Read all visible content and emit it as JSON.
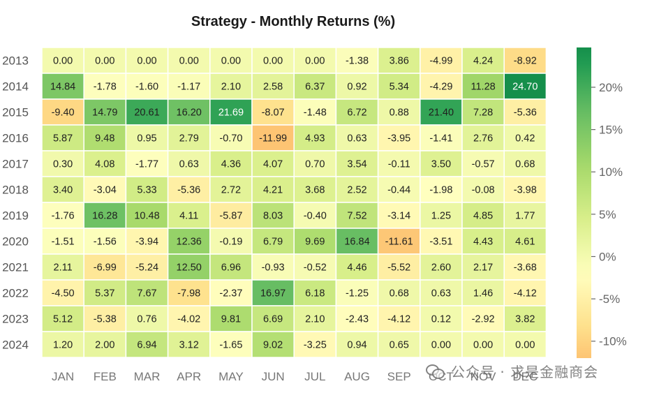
{
  "chart_data": {
    "type": "heatmap",
    "title": "Strategy - Monthly Returns (%)",
    "columns": [
      "JAN",
      "FEB",
      "MAR",
      "APR",
      "MAY",
      "JUN",
      "JUL",
      "AUG",
      "SEP",
      "OCT",
      "NOV",
      "DEC"
    ],
    "rows": [
      "2013",
      "2014",
      "2015",
      "2016",
      "2017",
      "2018",
      "2019",
      "2020",
      "2021",
      "2022",
      "2023",
      "2024"
    ],
    "values": [
      [
        "0.00",
        "0.00",
        "0.00",
        "0.00",
        "0.00",
        "0.00",
        "0.00",
        "-1.38",
        "3.86",
        "-4.99",
        "4.24",
        "-8.92"
      ],
      [
        "14.84",
        "-1.78",
        "-1.60",
        "-1.17",
        "2.10",
        "2.58",
        "6.37",
        "0.92",
        "5.34",
        "-4.29",
        "11.28",
        "24.70"
      ],
      [
        "-9.40",
        "14.79",
        "20.61",
        "16.20",
        "21.69",
        "-8.07",
        "-1.48",
        "6.72",
        "0.88",
        "21.40",
        "7.28",
        "-5.36"
      ],
      [
        "5.87",
        "9.48",
        "0.95",
        "2.79",
        "-0.70",
        "-11.99",
        "4.93",
        "0.63",
        "-3.95",
        "-1.41",
        "2.76",
        "0.42"
      ],
      [
        "0.30",
        "4.08",
        "-1.77",
        "0.63",
        "4.36",
        "4.07",
        "0.70",
        "3.54",
        "-0.11",
        "3.50",
        "-0.57",
        "0.68"
      ],
      [
        "3.40",
        "-3.04",
        "5.33",
        "-5.36",
        "2.72",
        "4.21",
        "3.68",
        "2.52",
        "-0.44",
        "-1.98",
        "-0.08",
        "-3.98"
      ],
      [
        "-1.76",
        "16.28",
        "10.48",
        "4.11",
        "-5.87",
        "8.03",
        "-0.40",
        "7.52",
        "-3.14",
        "1.25",
        "4.85",
        "1.77"
      ],
      [
        "-1.51",
        "-1.56",
        "-3.94",
        "12.36",
        "-0.19",
        "6.79",
        "9.69",
        "16.84",
        "-11.61",
        "-3.51",
        "4.43",
        "4.61"
      ],
      [
        "2.11",
        "-6.99",
        "-5.24",
        "12.50",
        "6.96",
        "-0.93",
        "-0.52",
        "4.46",
        "-5.52",
        "2.60",
        "2.17",
        "-3.68"
      ],
      [
        "-4.50",
        "5.37",
        "7.67",
        "-7.98",
        "-2.37",
        "16.97",
        "6.18",
        "-1.25",
        "0.68",
        "0.63",
        "1.46",
        "-4.12"
      ],
      [
        "5.12",
        "-5.38",
        "0.76",
        "-4.02",
        "9.81",
        "6.69",
        "2.10",
        "-2.43",
        "-4.12",
        "0.12",
        "-2.92",
        "3.82"
      ],
      [
        "1.20",
        "2.00",
        "6.94",
        "3.12",
        "-1.65",
        "9.02",
        "-3.25",
        "0.94",
        "0.65",
        "0.00",
        "0.00",
        "0.00"
      ]
    ],
    "colorbar": {
      "range": [
        -12,
        24.7
      ],
      "ticks": [
        -10,
        -5,
        0,
        5,
        10,
        15,
        20
      ],
      "tick_labels": [
        "-10%",
        "-5%",
        "0%",
        "5%",
        "10%",
        "15%",
        "20%"
      ],
      "colormap": "RdYlGn"
    },
    "grid": false,
    "legend": "colorbar-right"
  },
  "watermark": {
    "text": "公众号 · 求是金融商会",
    "icon": "wechat-icon"
  }
}
